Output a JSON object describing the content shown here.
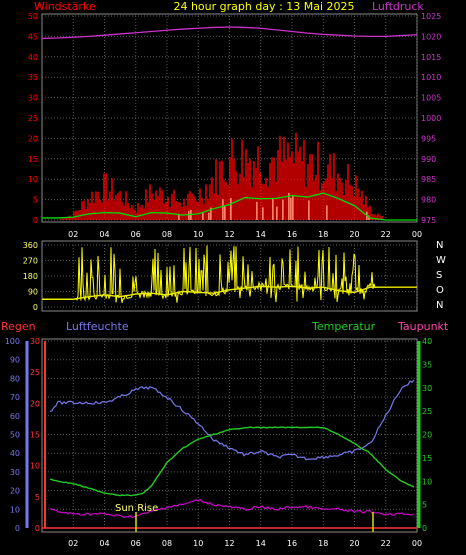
{
  "header": {
    "title": "24 hour graph day : 13 Mai 2025",
    "left_label": "Windstärke",
    "right_label": "Luftdruck"
  },
  "colors": {
    "wind": "#ff0000",
    "wind_avg": "#00dd00",
    "pressure": "#cc33cc",
    "direction": "#ffff00",
    "humidity": "#7777ee",
    "temperature": "#22cc22",
    "dewpoint": "#cc00cc",
    "rain": "#ff3333",
    "gust": "#ffffcc",
    "grid": "#5a5a5a"
  },
  "chart_data": [
    {
      "type": "line",
      "name": "wind-pressure",
      "x_ticks": [
        "02",
        "04",
        "06",
        "08",
        "10",
        "12",
        "14",
        "16",
        "18",
        "20",
        "22",
        "00"
      ],
      "y_left_ticks": [
        0,
        5,
        10,
        15,
        20,
        25,
        30,
        35,
        40,
        45,
        50
      ],
      "y_right_ticks": [
        975,
        980,
        985,
        990,
        995,
        1000,
        1005,
        1010,
        1015,
        1020,
        1025
      ],
      "ylim_left": [
        0,
        50
      ],
      "ylim_right": [
        975,
        1025
      ],
      "hours": [
        0,
        1,
        2,
        3,
        4,
        5,
        6,
        7,
        8,
        9,
        10,
        11,
        12,
        13,
        14,
        15,
        16,
        17,
        18,
        19,
        20,
        21,
        22,
        23,
        24
      ],
      "pressure": [
        1019.5,
        1019.6,
        1019.8,
        1020.0,
        1020.3,
        1020.6,
        1020.9,
        1021.2,
        1021.5,
        1021.8,
        1022.0,
        1022.2,
        1022.3,
        1022.2,
        1022.0,
        1021.6,
        1021.2,
        1020.8,
        1020.5,
        1020.3,
        1020.1,
        1020.0,
        1020.0,
        1020.2,
        1020.4
      ],
      "wind_avg": [
        0.5,
        0.5,
        0.7,
        1.5,
        1.8,
        1.7,
        0.8,
        1.8,
        1.7,
        1.2,
        1.5,
        2.8,
        3.8,
        5.5,
        5.2,
        5.3,
        6.0,
        5.6,
        6.6,
        5.2,
        3.5,
        0.5,
        0,
        0,
        0
      ],
      "wind_peak": [
        0,
        0,
        2,
        8,
        12,
        9,
        4,
        10,
        9,
        6,
        9,
        15,
        22,
        23,
        22,
        22,
        22,
        21,
        19,
        17,
        13,
        4,
        0,
        0,
        0
      ]
    },
    {
      "type": "line",
      "name": "wind-direction",
      "y_ticks": [
        0,
        90,
        180,
        270,
        360
      ],
      "ylim": [
        0,
        360
      ],
      "compass_labels": [
        "N",
        "W",
        "S",
        "O",
        "N"
      ],
      "hours": [
        0,
        2,
        3,
        4,
        5,
        6,
        7,
        8,
        9,
        10,
        11,
        12,
        13,
        14,
        15,
        16,
        17,
        18,
        19,
        20,
        21,
        22,
        23,
        24
      ],
      "direction_avg": [
        45,
        45,
        60,
        70,
        60,
        75,
        80,
        70,
        90,
        85,
        80,
        100,
        110,
        120,
        115,
        120,
        110,
        115,
        95,
        85,
        115,
        115,
        115,
        115
      ]
    },
    {
      "type": "line",
      "name": "weather",
      "legend": {
        "rain": "Regen",
        "humidity": "Luftfeuchte",
        "temperature": "Temperatur",
        "dewpoint": "Taupunkt"
      },
      "annotation": "Sun Rise",
      "x_ticks": [
        "02",
        "04",
        "06",
        "08",
        "10",
        "12",
        "14",
        "16",
        "18",
        "20",
        "22",
        "00"
      ],
      "y_left_ticks": [
        0,
        10,
        20,
        30,
        40,
        50,
        60,
        70,
        80,
        90,
        100
      ],
      "y_rain_ticks": [
        0,
        5,
        10,
        15,
        20,
        25,
        30
      ],
      "y_right_ticks": [
        0,
        5,
        10,
        15,
        20,
        25,
        30,
        35,
        40
      ],
      "ylim_left": [
        0,
        100
      ],
      "ylim_rain": [
        0,
        30
      ],
      "ylim_right": [
        0,
        40
      ],
      "hours": [
        0,
        0.5,
        1,
        2,
        3,
        4,
        5,
        6,
        6.5,
        7,
        8,
        9,
        10,
        11,
        12,
        13,
        14,
        15,
        16,
        17,
        18,
        19,
        20,
        21,
        22,
        23,
        24
      ],
      "humidity": [
        57,
        62,
        67,
        67,
        67,
        67,
        70,
        74,
        75,
        75,
        70,
        63,
        56,
        47,
        43,
        39,
        41,
        38,
        39,
        37,
        38,
        39,
        41,
        45,
        60,
        75,
        80
      ],
      "temperature": [
        12.5,
        10.5,
        10,
        9.5,
        8.5,
        7.5,
        7,
        7,
        7.5,
        9,
        14,
        17,
        19,
        20,
        21,
        21.5,
        21.5,
        21.5,
        21.5,
        21.5,
        21.5,
        20,
        18,
        16,
        12.5,
        10,
        8.5
      ],
      "dewpoint": [
        4,
        4,
        3.5,
        3,
        3,
        3,
        2.5,
        2.5,
        3,
        3.5,
        4.5,
        5,
        6,
        5,
        4.5,
        4,
        4.5,
        4,
        4.5,
        4.5,
        4,
        4,
        3.5,
        3.5,
        3,
        3,
        3
      ],
      "rain": [
        0,
        0,
        0,
        0,
        0,
        0,
        0,
        0,
        0,
        0,
        0,
        0,
        0,
        0,
        0,
        0,
        0,
        0,
        0,
        0,
        0,
        0,
        0,
        0,
        0,
        0,
        0
      ]
    }
  ]
}
